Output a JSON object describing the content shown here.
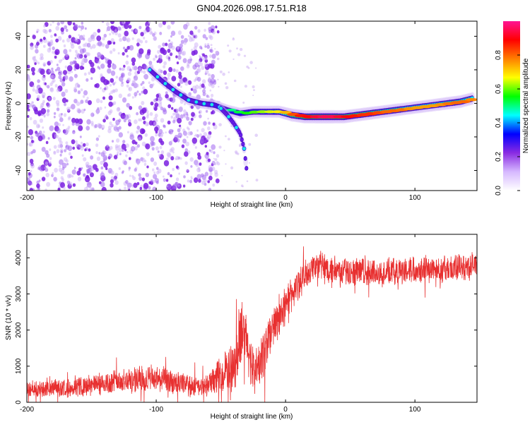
{
  "figure": {
    "title": "GN04.2026.098.17.51.R18"
  },
  "chart_data": [
    {
      "type": "heatmap",
      "title": "GN04.2026.098.17.51.R18",
      "xlabel": "Height of straight line (km)",
      "ylabel": "Frequency (Hz)",
      "xlim": [
        -200,
        148
      ],
      "ylim": [
        -52,
        49
      ],
      "xticks": [
        -200,
        -100,
        0,
        100
      ],
      "yticks": [
        -40,
        -20,
        0,
        20,
        40
      ],
      "colorbar": {
        "label": "Normalized spectral amplitude",
        "range": [
          0,
          1
        ],
        "ticks": [
          "0.0",
          "0.2",
          "0.4",
          "0.6",
          "0.8"
        ],
        "colormap": [
          "#ffffff",
          "#d6b8ff",
          "#8a2be2",
          "#0000ff",
          "#00ffff",
          "#00ff00",
          "#ffff00",
          "#ff7f00",
          "#ff0000",
          "#ff1493"
        ]
      },
      "noise_region_x": [
        -200,
        -60
      ],
      "main_ridge": {
        "x": [
          -105,
          -95,
          -85,
          -75,
          -65,
          -55,
          -45,
          -35,
          -25,
          -15,
          -5,
          5,
          15,
          25,
          35,
          45,
          55,
          65,
          75,
          85,
          95,
          105,
          115,
          125,
          135,
          145
        ],
        "frequency": [
          20,
          13,
          7,
          2,
          0,
          -1,
          -4,
          -6,
          -5,
          -5,
          -5,
          -7,
          -8,
          -8,
          -8,
          -8,
          -7,
          -6,
          -5,
          -4,
          -3,
          -2,
          -1,
          0,
          1,
          3
        ],
        "amplitude": [
          0.35,
          0.35,
          0.35,
          0.4,
          0.4,
          0.45,
          0.5,
          0.55,
          0.6,
          0.65,
          0.7,
          0.85,
          0.9,
          0.95,
          0.95,
          0.9,
          0.85,
          0.85,
          0.8,
          0.8,
          0.75,
          0.75,
          0.75,
          0.8,
          0.8,
          0.75
        ]
      },
      "secondary_branch": {
        "x": [
          -50,
          -45,
          -40,
          -35,
          -32,
          -30
        ],
        "frequency": [
          -3,
          -7,
          -12,
          -18,
          -27,
          -40
        ],
        "amplitude": [
          0.3,
          0.3,
          0.25,
          0.25,
          0.2,
          0.15
        ]
      }
    },
    {
      "type": "line",
      "xlabel": "Height of straight line (km)",
      "ylabel": "SNR (10 * v/v)",
      "xlim": [
        -200,
        148
      ],
      "ylim": [
        0,
        4650
      ],
      "xticks": [
        -200,
        -100,
        0,
        100
      ],
      "yticks": [
        0,
        1000,
        2000,
        3000,
        4000
      ],
      "color": "#e83030",
      "series": [
        {
          "name": "SNR",
          "x": [
            -200,
            -180,
            -160,
            -140,
            -120,
            -100,
            -80,
            -65,
            -55,
            -45,
            -38,
            -33,
            -25,
            -20,
            -15,
            -10,
            -5,
            0,
            5,
            10,
            15,
            20,
            25,
            30,
            40,
            50,
            60,
            70,
            80,
            90,
            100,
            110,
            120,
            130,
            140,
            148
          ],
          "mean": [
            350,
            380,
            420,
            520,
            620,
            650,
            500,
            400,
            600,
            900,
            1200,
            2000,
            900,
            1000,
            1600,
            2000,
            2400,
            2700,
            3000,
            3250,
            3500,
            3700,
            3800,
            3750,
            3650,
            3600,
            3620,
            3580,
            3600,
            3650,
            3700,
            3700,
            3680,
            3700,
            3750,
            3800
          ],
          "spread": [
            250,
            270,
            300,
            380,
            420,
            420,
            350,
            300,
            450,
            650,
            900,
            1000,
            700,
            700,
            800,
            700,
            650,
            600,
            550,
            500,
            450,
            450,
            450,
            450,
            420,
            420,
            420,
            420,
            420,
            420,
            420,
            420,
            420,
            420,
            420,
            420
          ]
        }
      ]
    }
  ]
}
